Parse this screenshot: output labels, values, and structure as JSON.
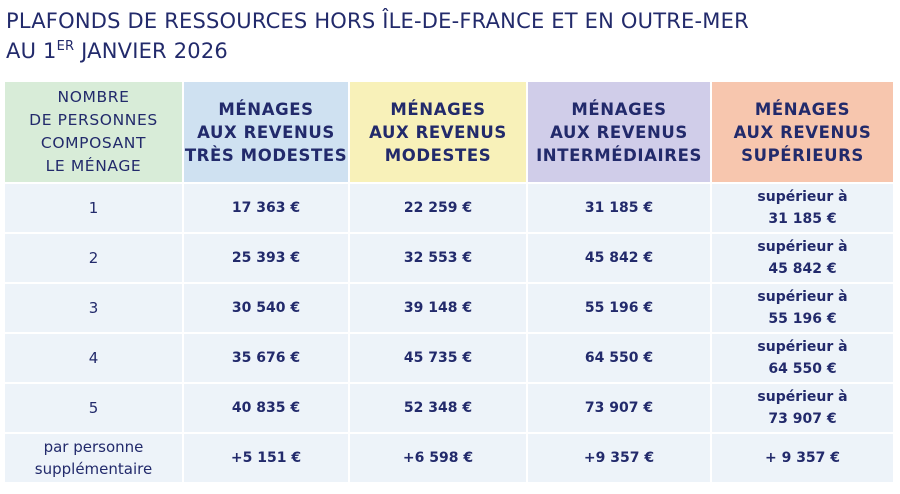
{
  "title": {
    "line1": "PLAFONDS DE RESSOURCES HORS ÎLE-DE-FRANCE ET EN OUTRE-MER",
    "line2_start": "AU 1",
    "line2_sup": "ER",
    "line2_end": "JANVIER 2026"
  },
  "table": {
    "header": [
      [
        "NOMBRE",
        "DE PERSONNES",
        "COMPOSANT",
        "LE MÉNAGE"
      ],
      [
        "MÉNAGES",
        "AUX REVENUS",
        "TRÈS MODESTES"
      ],
      [
        "MÉNAGES",
        "AUX REVENUS",
        "MODESTES"
      ],
      [
        "MÉNAGES",
        "AUX REVENUS",
        "INTERMÉDIAIRES"
      ],
      [
        "MÉNAGES",
        "AUX REVENUS",
        "SUPÉRIEURS"
      ]
    ],
    "rows": [
      [
        [
          "1"
        ],
        [
          "17 363 €"
        ],
        [
          "22 259 €"
        ],
        [
          "31 185 €"
        ],
        [
          "supérieur à",
          "31 185 €"
        ]
      ],
      [
        [
          "2"
        ],
        [
          "25 393 €"
        ],
        [
          "32 553 €"
        ],
        [
          "45 842 €"
        ],
        [
          "supérieur à",
          "45 842 €"
        ]
      ],
      [
        [
          "3"
        ],
        [
          "30 540 €"
        ],
        [
          "39 148 €"
        ],
        [
          "55 196 €"
        ],
        [
          "supérieur à",
          "55 196 €"
        ]
      ],
      [
        [
          "4"
        ],
        [
          "35 676 €"
        ],
        [
          "45 735 €"
        ],
        [
          "64 550 €"
        ],
        [
          "supérieur à",
          "64 550 €"
        ]
      ],
      [
        [
          "5"
        ],
        [
          "40 835 €"
        ],
        [
          "52 348 €"
        ],
        [
          "73 907 €"
        ],
        [
          "supérieur à",
          "73 907 €"
        ]
      ],
      [
        [
          "par personne",
          "supplémentaire"
        ],
        [
          "+5 151 €"
        ],
        [
          "+6 598 €"
        ],
        [
          "+9 357 €"
        ],
        [
          "+ 9 357 €"
        ]
      ]
    ]
  }
}
